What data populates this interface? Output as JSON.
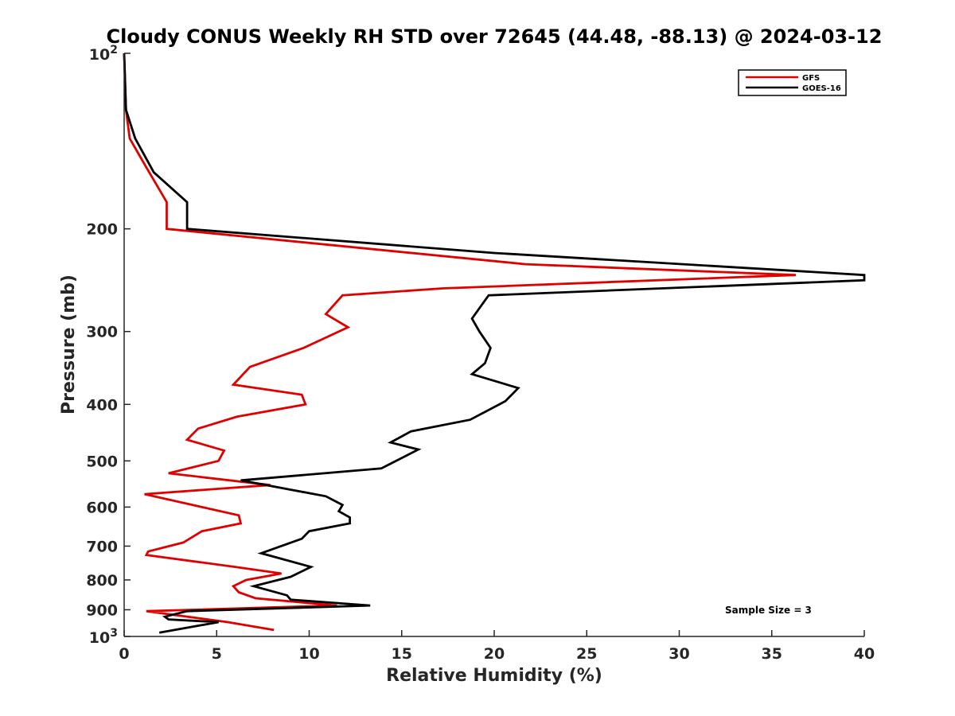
{
  "chart_data": {
    "type": "line",
    "title": "Cloudy CONUS Weekly RH STD over 72645 (44.48, -88.13) @ 2024-03-12",
    "xlabel": "Relative Humidity (%)",
    "ylabel": "Pressure (mb)",
    "xlim": [
      0,
      40
    ],
    "ylim": [
      100,
      1000
    ],
    "y_scale": "log",
    "y_reversed": true,
    "grid": false,
    "legend_position": "top-right",
    "x_ticks": [
      "0",
      "5",
      "10",
      "15",
      "20",
      "25",
      "30",
      "35",
      "40"
    ],
    "y_ticks": [
      {
        "value": 100,
        "base": "10",
        "exp": "2"
      },
      {
        "value": 200,
        "label": "200"
      },
      {
        "value": 300,
        "label": "300"
      },
      {
        "value": 400,
        "label": "400"
      },
      {
        "value": 500,
        "label": "500"
      },
      {
        "value": 600,
        "label": "600"
      },
      {
        "value": 700,
        "label": "700"
      },
      {
        "value": 800,
        "label": "800"
      },
      {
        "value": 900,
        "label": "900"
      },
      {
        "value": 1000,
        "base": "10",
        "exp": "3"
      }
    ],
    "annotation": "Sample Size = 3",
    "series": [
      {
        "name": "GFS",
        "color": "#e00000",
        "points": [
          [
            0,
            100
          ],
          [
            0.1,
            125
          ],
          [
            0.3,
            140
          ],
          [
            1.1,
            155
          ],
          [
            2.3,
            180
          ],
          [
            2.3,
            200
          ],
          [
            21.7,
            230
          ],
          [
            36.3,
            240
          ],
          [
            17.2,
            253
          ],
          [
            11.8,
            260
          ],
          [
            10.9,
            280
          ],
          [
            12.1,
            295
          ],
          [
            9.7,
            320
          ],
          [
            6.8,
            345
          ],
          [
            5.9,
            370
          ],
          [
            9.6,
            385
          ],
          [
            9.8,
            400
          ],
          [
            6.1,
            420
          ],
          [
            4.0,
            440
          ],
          [
            3.4,
            460
          ],
          [
            5.4,
            480
          ],
          [
            5.1,
            500
          ],
          [
            2.4,
            525
          ],
          [
            7.9,
            550
          ],
          [
            1.1,
            570
          ],
          [
            6.2,
            620
          ],
          [
            6.3,
            640
          ],
          [
            4.2,
            660
          ],
          [
            3.2,
            690
          ],
          [
            1.3,
            715
          ],
          [
            1.2,
            725
          ],
          [
            6.0,
            760
          ],
          [
            8.5,
            780
          ],
          [
            6.6,
            800
          ],
          [
            5.9,
            820
          ],
          [
            6.2,
            840
          ],
          [
            7.1,
            860
          ],
          [
            11.5,
            885
          ],
          [
            1.2,
            905
          ],
          [
            5.6,
            945
          ],
          [
            8.1,
            975
          ]
        ]
      },
      {
        "name": "GOES-16",
        "color": "#000000",
        "points": [
          [
            0,
            100
          ],
          [
            0.1,
            125
          ],
          [
            0.6,
            140
          ],
          [
            1.6,
            160
          ],
          [
            3.4,
            180
          ],
          [
            3.4,
            200
          ],
          [
            20.0,
            220
          ],
          [
            40.0,
            240
          ],
          [
            40.0,
            245
          ],
          [
            19.7,
            260
          ],
          [
            18.8,
            285
          ],
          [
            19.2,
            300
          ],
          [
            19.8,
            320
          ],
          [
            19.5,
            340
          ],
          [
            18.8,
            355
          ],
          [
            21.3,
            375
          ],
          [
            20.6,
            395
          ],
          [
            18.7,
            425
          ],
          [
            15.5,
            445
          ],
          [
            14.4,
            465
          ],
          [
            15.9,
            478
          ],
          [
            14.7,
            500
          ],
          [
            13.9,
            515
          ],
          [
            6.3,
            540
          ],
          [
            10.9,
            575
          ],
          [
            11.8,
            595
          ],
          [
            11.6,
            610
          ],
          [
            12.2,
            625
          ],
          [
            12.2,
            640
          ],
          [
            10.0,
            660
          ],
          [
            9.6,
            680
          ],
          [
            7.4,
            720
          ],
          [
            10.1,
            760
          ],
          [
            9.0,
            790
          ],
          [
            7.0,
            820
          ],
          [
            8.8,
            850
          ],
          [
            9.0,
            865
          ],
          [
            13.3,
            885
          ],
          [
            3.4,
            905
          ],
          [
            2.2,
            925
          ],
          [
            2.4,
            935
          ],
          [
            5.1,
            945
          ],
          [
            1.9,
            985
          ]
        ]
      }
    ]
  }
}
